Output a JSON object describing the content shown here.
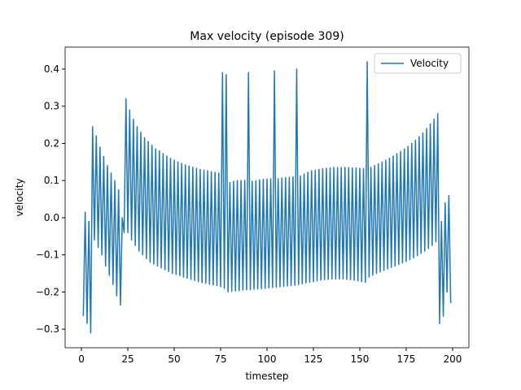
{
  "chart_data": {
    "type": "line",
    "title": "Max velocity (episode 309)",
    "x_label": "timestep",
    "y_label": "velocity",
    "legend": "upper right",
    "xlim": [
      -8.8,
      208.8
    ],
    "ylim": [
      -0.35,
      0.459
    ],
    "xticks": [
      0,
      25,
      50,
      75,
      100,
      125,
      150,
      175,
      200
    ],
    "yticks": [
      {
        "value": -0.3,
        "label": "−0.3"
      },
      {
        "value": -0.2,
        "label": "−0.2"
      },
      {
        "value": -0.1,
        "label": "−0.1"
      },
      {
        "value": 0,
        "label": "0.0"
      },
      0.1,
      0.2,
      0.3,
      0.4
    ],
    "x": [
      1,
      2,
      3,
      4,
      5,
      6,
      7,
      8,
      9,
      10,
      11,
      12,
      13,
      14,
      15,
      16,
      17,
      18,
      19,
      20,
      21,
      22,
      23,
      24,
      25,
      26,
      27,
      28,
      29,
      30,
      31,
      32,
      33,
      34,
      35,
      36,
      37,
      38,
      39,
      40,
      41,
      42,
      43,
      44,
      45,
      46,
      47,
      48,
      49,
      50,
      51,
      52,
      53,
      54,
      55,
      56,
      57,
      58,
      59,
      60,
      61,
      62,
      63,
      64,
      65,
      66,
      67,
      68,
      69,
      70,
      71,
      72,
      73,
      74,
      75,
      76,
      77,
      78,
      79,
      80,
      81,
      82,
      83,
      84,
      85,
      86,
      87,
      88,
      89,
      90,
      91,
      92,
      93,
      94,
      95,
      96,
      97,
      98,
      99,
      100,
      101,
      102,
      103,
      104,
      105,
      106,
      107,
      108,
      109,
      110,
      111,
      112,
      113,
      114,
      115,
      116,
      117,
      118,
      119,
      120,
      121,
      122,
      123,
      124,
      125,
      126,
      127,
      128,
      129,
      130,
      131,
      132,
      133,
      134,
      135,
      136,
      137,
      138,
      139,
      140,
      141,
      142,
      143,
      144,
      145,
      146,
      147,
      148,
      149,
      150,
      151,
      152,
      153,
      154,
      155,
      156,
      157,
      158,
      159,
      160,
      161,
      162,
      163,
      164,
      165,
      166,
      167,
      168,
      169,
      170,
      171,
      172,
      173,
      174,
      175,
      176,
      177,
      178,
      179,
      180,
      181,
      182,
      183,
      184,
      185,
      186,
      187,
      188,
      189,
      190,
      191,
      192,
      193,
      194,
      195,
      196,
      197,
      198,
      199
    ],
    "series": [
      {
        "name": "Velocity",
        "color": "#1f77b4",
        "values": [
          -0.265,
          0.015,
          -0.285,
          -0.01,
          -0.31,
          0.245,
          -0.06,
          0.22,
          -0.08,
          0.19,
          -0.1,
          0.165,
          -0.13,
          0.14,
          -0.155,
          0.12,
          -0.18,
          0.1,
          -0.21,
          0.075,
          -0.235,
          0.0,
          -0.04,
          0.32,
          -0.04,
          0.29,
          -0.06,
          0.265,
          -0.075,
          0.245,
          -0.09,
          0.23,
          -0.1,
          0.215,
          -0.11,
          0.205,
          -0.12,
          0.195,
          -0.125,
          0.185,
          -0.13,
          0.18,
          -0.135,
          0.172,
          -0.14,
          0.166,
          -0.145,
          0.16,
          -0.15,
          0.155,
          -0.153,
          0.15,
          -0.156,
          0.146,
          -0.16,
          0.142,
          -0.163,
          0.139,
          -0.166,
          0.136,
          -0.169,
          0.133,
          -0.172,
          0.13,
          -0.175,
          0.128,
          -0.177,
          0.126,
          -0.179,
          0.124,
          -0.181,
          0.122,
          -0.183,
          0.12,
          -0.186,
          0.39,
          -0.19,
          0.385,
          -0.2,
          0.095,
          -0.198,
          0.098,
          -0.197,
          0.1,
          -0.196,
          0.1,
          -0.195,
          0.101,
          -0.194,
          0.39,
          -0.194,
          0.098,
          -0.193,
          0.1,
          -0.192,
          0.102,
          -0.191,
          0.103,
          -0.19,
          0.104,
          -0.189,
          0.105,
          -0.188,
          0.395,
          -0.187,
          0.105,
          -0.186,
          0.107,
          -0.185,
          0.108,
          -0.184,
          0.109,
          -0.183,
          0.11,
          -0.182,
          0.4,
          -0.18,
          0.112,
          -0.178,
          0.118,
          -0.176,
          0.122,
          -0.174,
          0.126,
          -0.172,
          0.128,
          -0.17,
          0.13,
          -0.168,
          0.132,
          -0.167,
          0.133,
          -0.166,
          0.134,
          -0.165,
          0.135,
          -0.165,
          0.135,
          -0.165,
          0.135,
          -0.165,
          0.135,
          -0.166,
          0.135,
          -0.167,
          0.134,
          -0.168,
          0.134,
          -0.17,
          0.133,
          -0.172,
          0.132,
          -0.174,
          0.42,
          -0.16,
          0.135,
          -0.155,
          0.14,
          -0.15,
          0.145,
          -0.146,
          0.15,
          -0.142,
          0.155,
          -0.138,
          0.16,
          -0.134,
          0.166,
          -0.13,
          0.172,
          -0.126,
          0.178,
          -0.122,
          0.185,
          -0.118,
          0.192,
          -0.113,
          0.2,
          -0.108,
          0.208,
          -0.102,
          0.218,
          -0.096,
          0.228,
          -0.09,
          0.24,
          -0.083,
          0.252,
          -0.075,
          0.265,
          -0.065,
          0.28,
          -0.285,
          -0.01,
          -0.265,
          0.04,
          -0.2,
          0.06,
          -0.23
        ]
      }
    ]
  }
}
